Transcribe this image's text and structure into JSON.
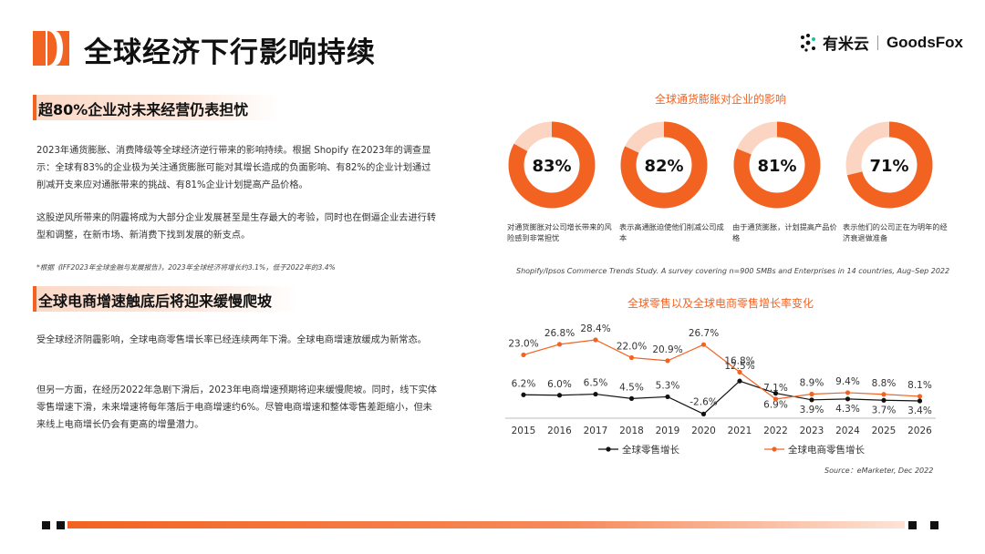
{
  "header": {
    "title": "全球经济下行影响持续",
    "brand_cn": "有米云",
    "brand_en": "GoodsFox"
  },
  "section1": {
    "heading": "超80%企业对未来经营仍表担忧",
    "para1": "2023年通货膨胀、消费降级等全球经济逆行带来的影响持续。根据 Shopify 在2023年的调查显示：全球有83%的企业极为关注通货膨胀可能对其增长造成的负面影响、有82%的企业计划通过削减开支来应对通胀带来的挑战、有81%企业计划提高产品价格。",
    "para2": "这股逆风所带来的阴霾将成为大部分企业发展甚至是生存最大的考验，同时也在倒逼企业去进行转型和调整，在新市场、新消费下找到发展的新支点。",
    "note": "*根据《IFF2023年全球金融与发展报告》，2023年全球经济将增长约3.1%，低于2022年的3.4%"
  },
  "section2": {
    "heading": "全球电商增速触底后将迎来缓慢爬坡",
    "para1": "受全球经济阴霾影响，全球电商零售增长率已经连续两年下滑。全球电商增速放缓成为新常态。",
    "para2": "但另一方面，在经历2022年急剧下滑后，2023年电商增速预期将迎来缓慢爬坡。同时，线下实体零售增速下滑，未来增速将每年落后于电商增速约6%。尽管电商增速和整体零售差距缩小，但未来线上电商增长仍会有更高的增量潜力。"
  },
  "donuts": {
    "title": "全球通货膨胀对企业的影响",
    "items": [
      {
        "value": 83,
        "label_text": "83%",
        "desc": "对通货膨胀对公司增长带来的风险感到非常担忧"
      },
      {
        "value": 82,
        "label_text": "82%",
        "desc": "表示高通胀迫使他们削减公司成本"
      },
      {
        "value": 81,
        "label_text": "81%",
        "desc": "由于通货膨胀，计划提高产品价格"
      },
      {
        "value": 71,
        "label_text": "71%",
        "desc": "表示他们的公司正在为明年的经济衰退做准备"
      }
    ],
    "source": "Shopify/Ipsos Commerce Trends Study. A survey covering n=900 SMBs and Enterprises in 14 countries, Aug–Sep 2022",
    "colors": {
      "accent": "#f26322",
      "light": "#fbd5c2"
    }
  },
  "chart_data": {
    "type": "line",
    "title": "全球零售以及全球电商零售增长率变化",
    "x": [
      "2015",
      "2016",
      "2017",
      "2018",
      "2019",
      "2020",
      "2021",
      "2022",
      "2023",
      "2024",
      "2025",
      "2026"
    ],
    "series": [
      {
        "name": "全球零售增长",
        "color": "#111111",
        "values": [
          6.2,
          6.0,
          6.5,
          4.5,
          5.3,
          -2.6,
          12.5,
          6.9,
          3.9,
          4.3,
          3.7,
          3.4
        ],
        "labels": [
          "6.2%",
          "6.0%",
          "6.5%",
          "4.5%",
          "5.3%",
          "-2.6%",
          "12.5%",
          "6.9%",
          "3.9%",
          "4.3%",
          "3.7%",
          "3.4%"
        ]
      },
      {
        "name": "全球电商零售增长",
        "color": "#f26322",
        "values": [
          23.0,
          26.8,
          28.4,
          22.0,
          20.9,
          26.7,
          16.8,
          7.1,
          8.9,
          9.4,
          8.8,
          8.1
        ],
        "labels": [
          "23.0%",
          "26.8%",
          "28.4%",
          "22.0%",
          "20.9%",
          "26.7%",
          "16.8%",
          "7.1%",
          "8.9%",
          "9.4%",
          "8.8%",
          "8.1%"
        ]
      }
    ],
    "ylim": [
      -4,
      30
    ],
    "grid": false,
    "legend": "bottom",
    "source": "Source：eMarketer, Dec 2022"
  }
}
